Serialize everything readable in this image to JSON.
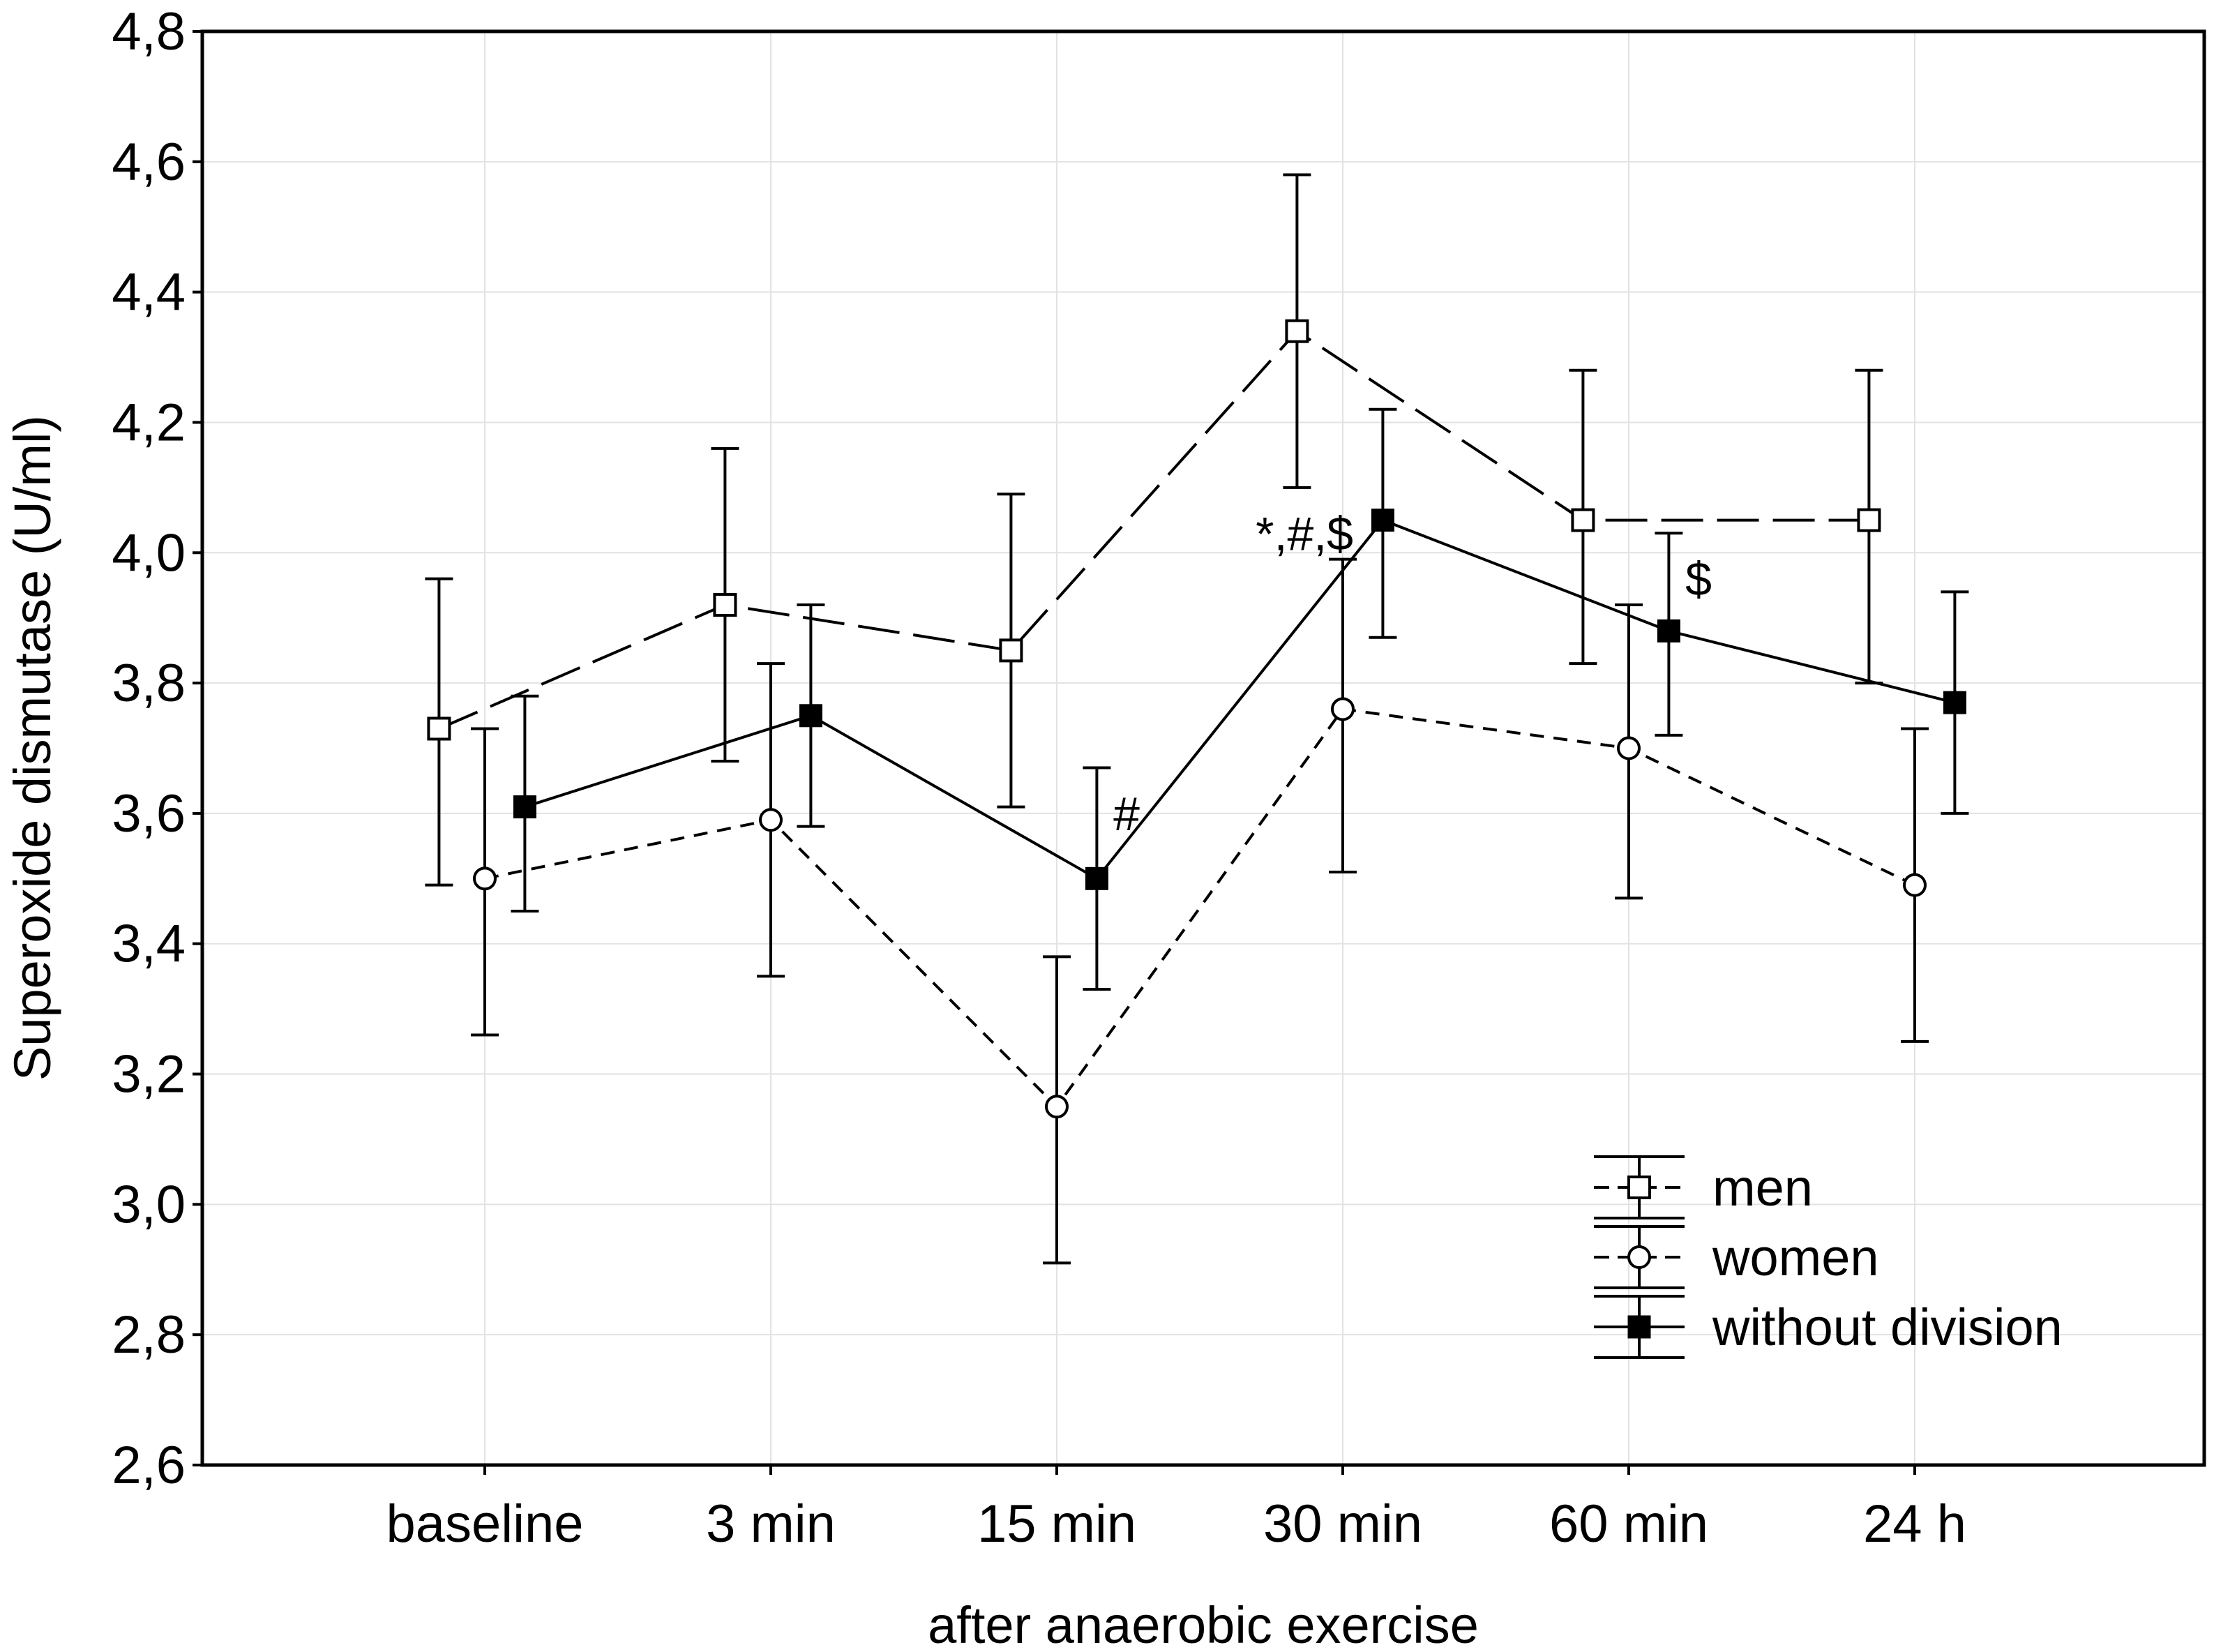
{
  "chart_data": {
    "type": "line",
    "title": "",
    "xlabel": "after anaerobic exercise",
    "ylabel": "Superoxide dismutase (U/ml)",
    "categories": [
      "baseline",
      "3 min",
      "15 min",
      "30 min",
      "60 min",
      "24 h"
    ],
    "ylim": [
      2.6,
      4.8
    ],
    "yticks": [
      "2,6",
      "2,8",
      "3,0",
      "3,2",
      "3,4",
      "3,6",
      "3,8",
      "4,0",
      "4,2",
      "4,4",
      "4,6",
      "4,8"
    ],
    "ytick_values": [
      2.6,
      2.8,
      3.0,
      3.2,
      3.4,
      3.6,
      3.8,
      4.0,
      4.2,
      4.4,
      4.6,
      4.8
    ],
    "grid": true,
    "legend_position": "bottom-right",
    "series": [
      {
        "name": "men",
        "marker": "open-square",
        "line": "long-dash",
        "offset": -0.16,
        "values": [
          3.73,
          3.92,
          3.85,
          4.34,
          4.05,
          4.05
        ],
        "err_low": [
          3.49,
          3.68,
          3.61,
          4.1,
          3.83,
          3.8
        ],
        "err_high": [
          3.96,
          4.16,
          4.09,
          4.58,
          4.28,
          4.28
        ]
      },
      {
        "name": "women",
        "marker": "open-circle",
        "line": "short-dash",
        "offset": 0,
        "values": [
          3.5,
          3.59,
          3.15,
          3.76,
          3.7,
          3.49
        ],
        "err_low": [
          3.26,
          3.35,
          2.91,
          3.51,
          3.47,
          3.25
        ],
        "err_high": [
          3.73,
          3.83,
          3.38,
          3.99,
          3.92,
          3.73
        ]
      },
      {
        "name": "without division",
        "marker": "filled-square",
        "line": "solid",
        "offset": 0.14,
        "values": [
          3.61,
          3.75,
          3.5,
          4.05,
          3.88,
          3.77
        ],
        "err_low": [
          3.45,
          3.58,
          3.33,
          3.87,
          3.72,
          3.6
        ],
        "err_high": [
          3.78,
          3.92,
          3.67,
          4.22,
          4.03,
          3.94
        ]
      }
    ],
    "annotations": [
      {
        "text": "#",
        "category": "15 min",
        "y": 3.6
      },
      {
        "text": "*,#,$",
        "category": "30 min",
        "y": 4.03
      },
      {
        "text": "$",
        "category": "60 min",
        "y": 3.96
      }
    ]
  }
}
